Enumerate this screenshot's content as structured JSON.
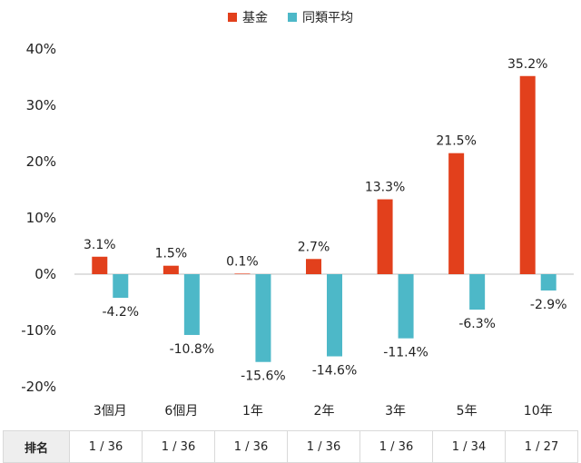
{
  "legend": {
    "fund_label": "基金",
    "peer_label": "同類平均"
  },
  "colors": {
    "fund": "#e2401c",
    "peer": "#4db8c8",
    "axis": "#bfbfbf"
  },
  "rank_row": {
    "header": "排名",
    "values": [
      "1 / 36",
      "1 / 36",
      "1 / 36",
      "1 / 36",
      "1 / 36",
      "1 / 34",
      "1 / 27"
    ]
  },
  "chart_data": {
    "type": "bar",
    "categories": [
      "3個月",
      "6個月",
      "1年",
      "2年",
      "3年",
      "5年",
      "10年"
    ],
    "series": [
      {
        "name": "基金",
        "values": [
          3.1,
          1.5,
          0.1,
          2.7,
          13.3,
          21.5,
          35.2
        ],
        "labels": [
          "3.1%",
          "1.5%",
          "0.1%",
          "2.7%",
          "13.3%",
          "21.5%",
          "35.2%"
        ]
      },
      {
        "name": "同類平均",
        "values": [
          -4.2,
          -10.8,
          -15.6,
          -14.6,
          -11.4,
          -6.3,
          -2.9
        ],
        "labels": [
          "-4.2%",
          "-10.8%",
          "-15.6%",
          "-14.6%",
          "-11.4%",
          "-6.3%",
          "-2.9%"
        ]
      }
    ],
    "yticks": [
      "40%",
      "30%",
      "20%",
      "10%",
      "0%",
      "-10%",
      "-20%"
    ],
    "ylim": [
      -20,
      40
    ],
    "grid": false,
    "legend_position": "top-center"
  }
}
